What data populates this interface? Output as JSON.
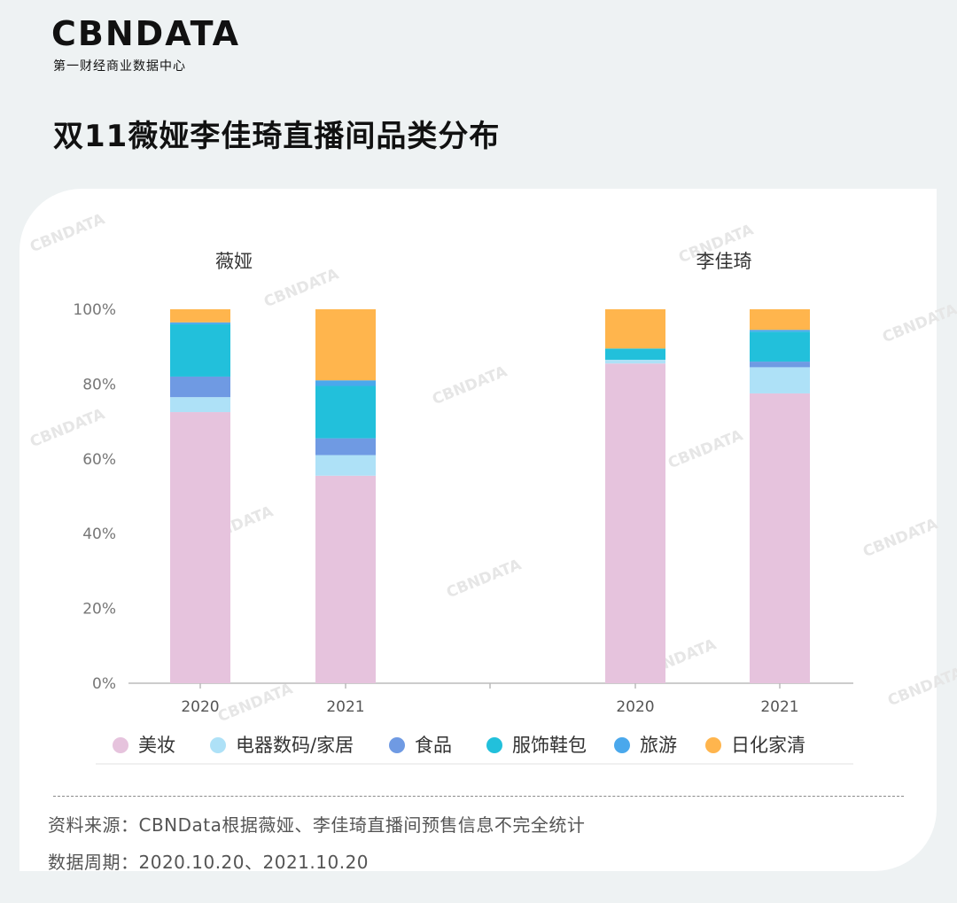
{
  "logo": {
    "main": "CBNDATA",
    "sub": "第一财经商业数据中心"
  },
  "title": "双11薇娅李佳琦直播间品类分布",
  "watermark": "CBNDATA",
  "colors": {
    "美妆": "#e6c3dd",
    "电器数码/家居": "#aee1f7",
    "食品": "#6f9ae3",
    "服饰鞋包": "#22c0db",
    "旅游": "#4aa8ec",
    "日化家清": "#ffb54d"
  },
  "chart_data": {
    "type": "bar",
    "stacked": true,
    "groups": [
      {
        "name": "薇娅",
        "categories": [
          "2020",
          "2021"
        ]
      },
      {
        "name": "李佳琦",
        "categories": [
          "2020",
          "2021"
        ]
      }
    ],
    "series": [
      {
        "name": "美妆",
        "values": [
          72.5,
          55.5,
          85.5,
          77.5
        ]
      },
      {
        "name": "电器数码/家居",
        "values": [
          4,
          5.5,
          1,
          7
        ]
      },
      {
        "name": "食品",
        "values": [
          5.5,
          4.5,
          0,
          1.5
        ]
      },
      {
        "name": "服饰鞋包",
        "values": [
          14,
          14,
          3,
          8
        ]
      },
      {
        "name": "旅游",
        "values": [
          0.5,
          1.5,
          0,
          0.5
        ]
      },
      {
        "name": "日化家清",
        "values": [
          3.5,
          19,
          10.5,
          5.5
        ]
      }
    ],
    "yticks": [
      "0%",
      "20%",
      "40%",
      "60%",
      "80%",
      "100%"
    ],
    "ylim": [
      0,
      100
    ],
    "legend": "bottom"
  },
  "footer": {
    "source": "资料来源：CBNData根据薇娅、李佳琦直播间预售信息不完全统计",
    "period": "数据周期：2020.10.20、2021.10.20"
  }
}
